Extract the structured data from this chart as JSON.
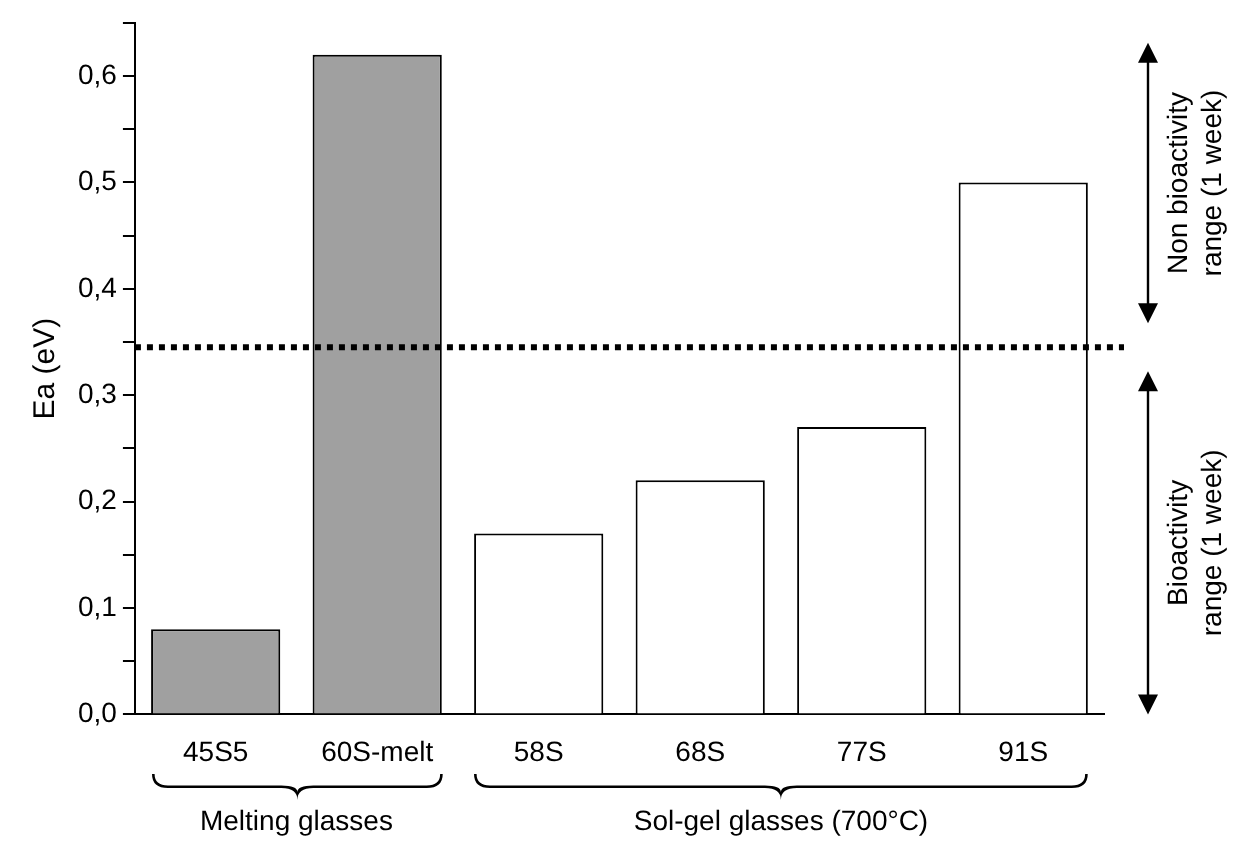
{
  "chart_data": {
    "type": "bar",
    "ylabel": "Ea (eV)",
    "categories": [
      "45S5",
      "60S-melt",
      "58S",
      "68S",
      "77S",
      "91S"
    ],
    "values": [
      0.08,
      0.62,
      0.17,
      0.22,
      0.27,
      0.5
    ],
    "colors": [
      "#a0a0a0",
      "#a0a0a0",
      "#ffffff",
      "#ffffff",
      "#ffffff",
      "#ffffff"
    ],
    "ylim": [
      0,
      0.65
    ],
    "yticks": [
      {
        "value": 0,
        "label": "0,0"
      },
      {
        "value": 0.05,
        "label": null
      },
      {
        "value": 0.1,
        "label": "0,1"
      },
      {
        "value": 0.15,
        "label": null
      },
      {
        "value": 0.2,
        "label": "0,2"
      },
      {
        "value": 0.25,
        "label": null
      },
      {
        "value": 0.3,
        "label": "0,3"
      },
      {
        "value": 0.35,
        "label": null
      },
      {
        "value": 0.4,
        "label": "0,4"
      },
      {
        "value": 0.45,
        "label": null
      },
      {
        "value": 0.5,
        "label": "0,5"
      },
      {
        "value": 0.55,
        "label": null
      },
      {
        "value": 0.6,
        "label": "0,6"
      },
      {
        "value": 0.65,
        "label": null
      }
    ],
    "ref_lines": [
      {
        "axis": "y",
        "value": 0.345,
        "line_style": "dotted",
        "color": "#000000"
      }
    ],
    "annotations": [
      "Melting glasses",
      "Sol-gel glasses (700°C)",
      "Non bioactivity range (1 week)",
      "Bioactivity range (1 week)"
    ],
    "grid": false,
    "legend": false
  }
}
